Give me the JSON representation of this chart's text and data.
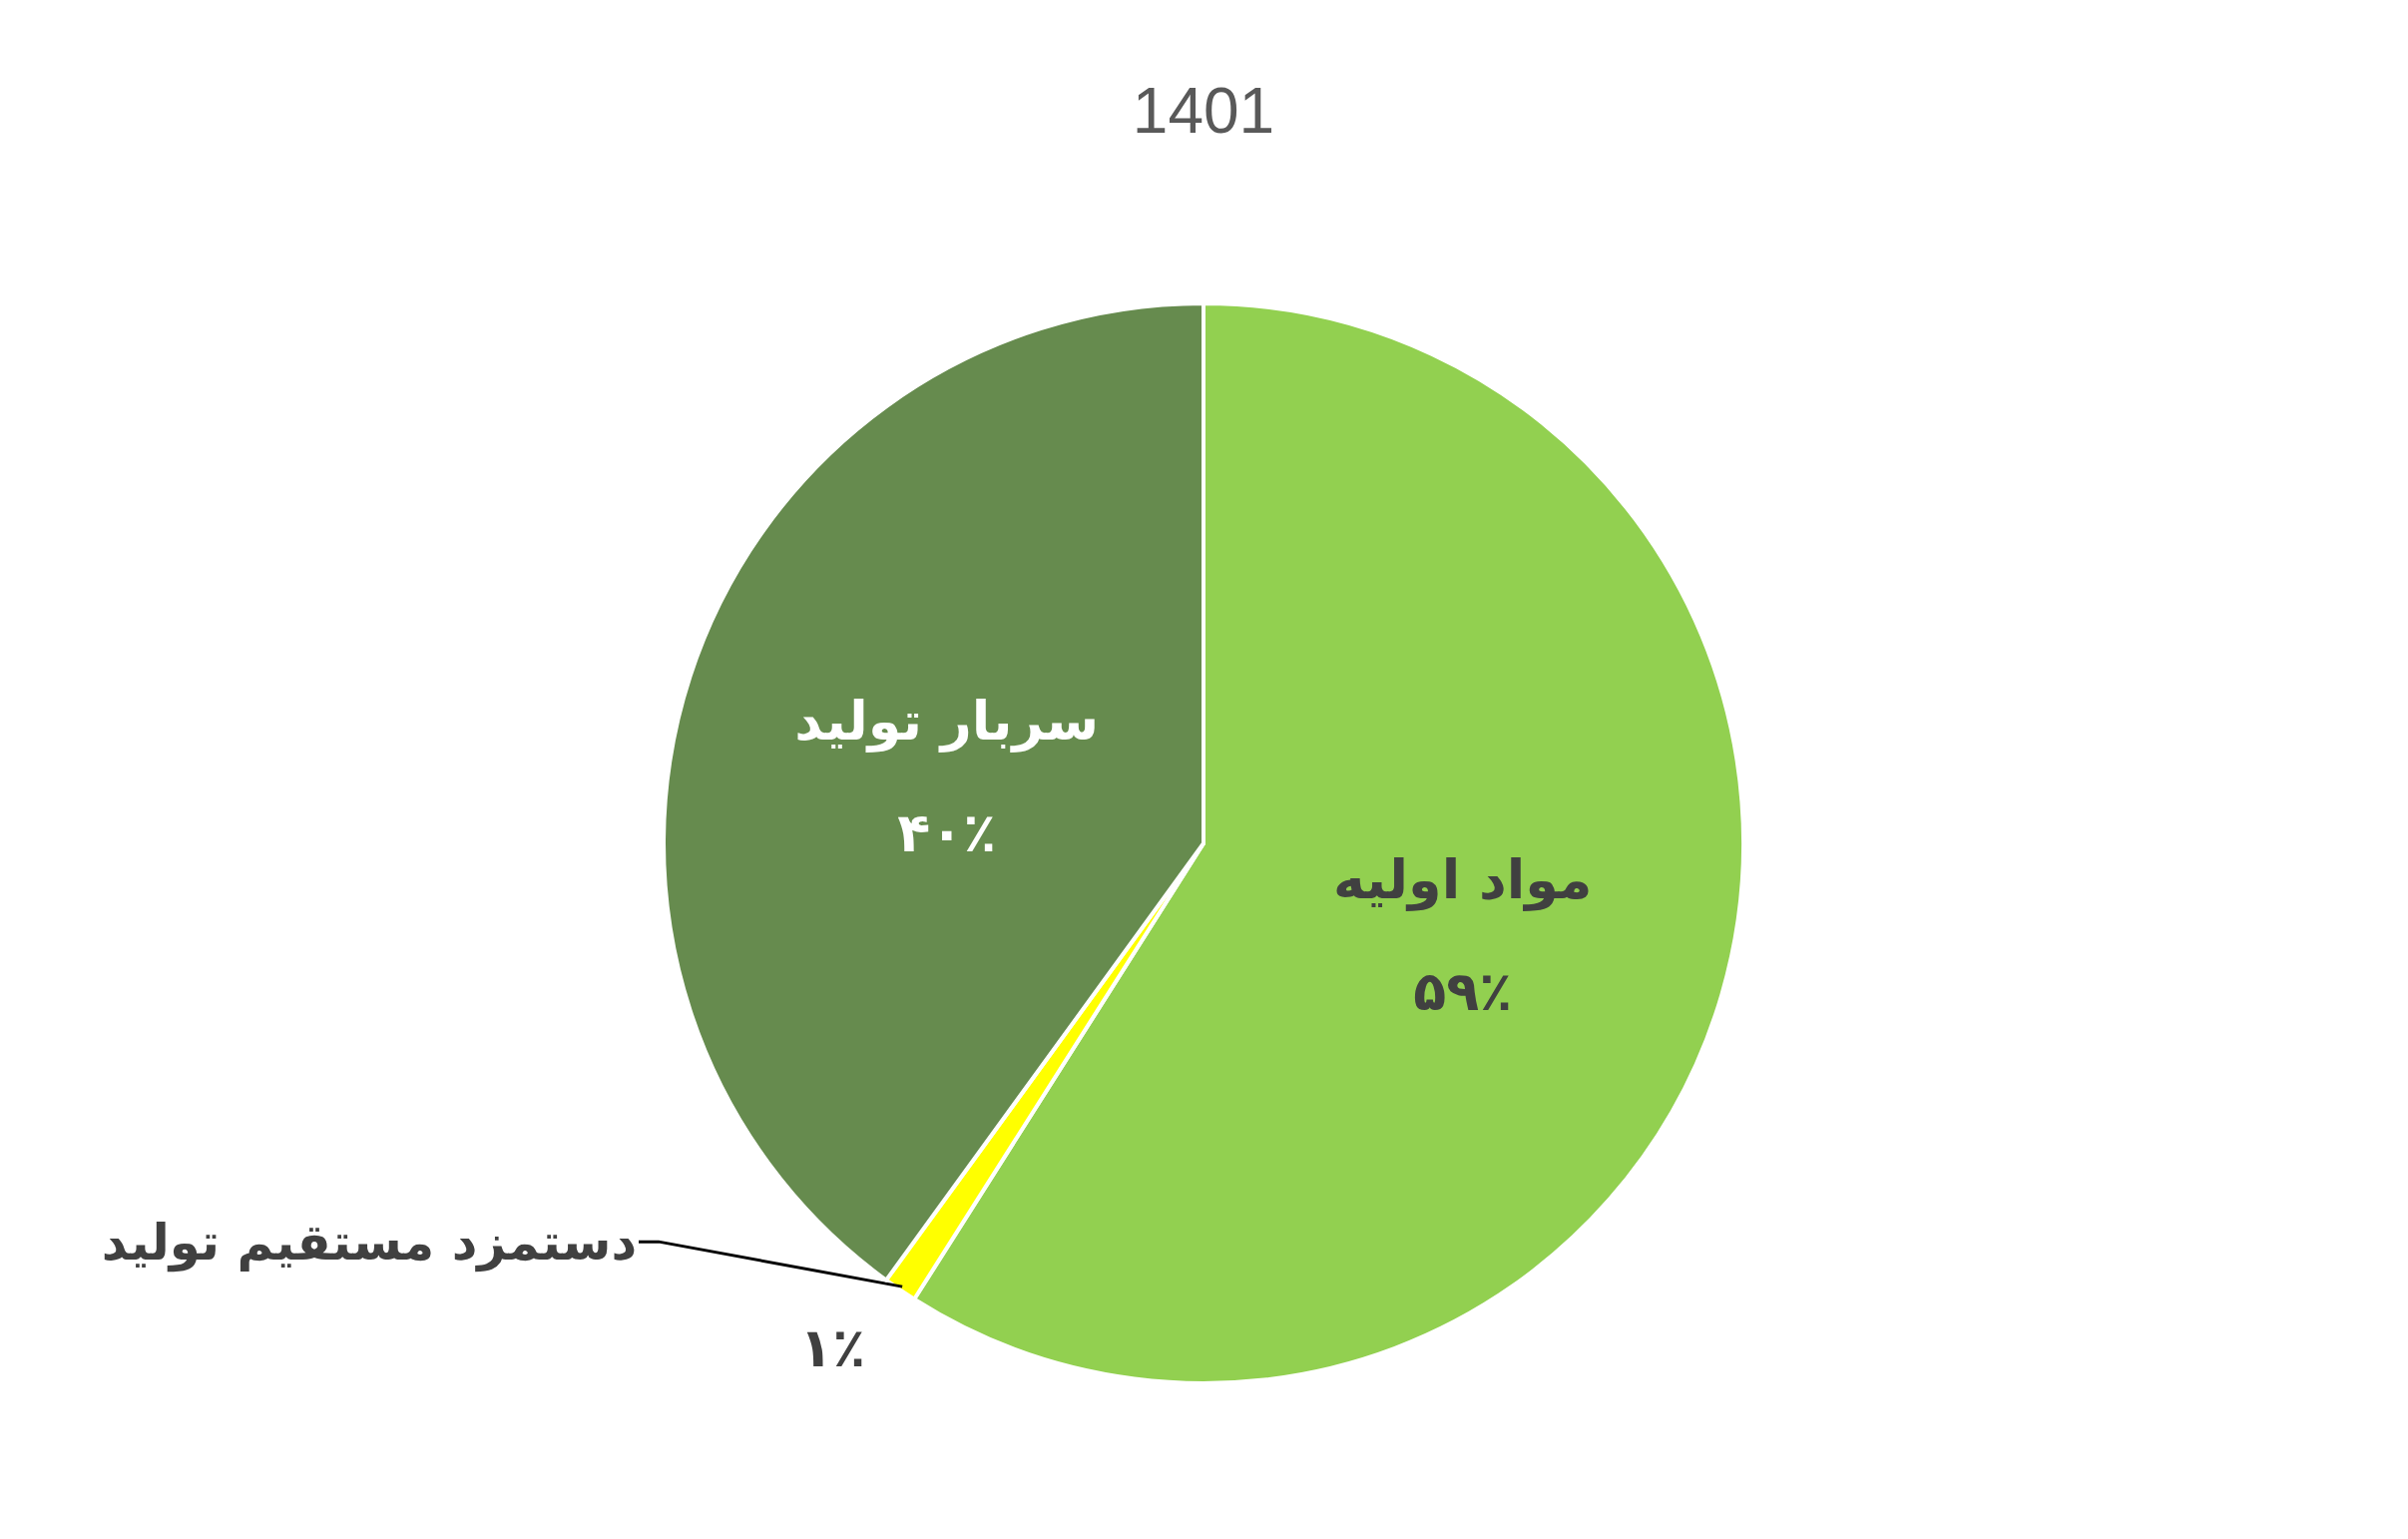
{
  "chart_data": {
    "type": "pie",
    "title": "1401",
    "categories": [
      "مواد اولیه",
      "دستمزد مستقیم تولید",
      "سربار تولید"
    ],
    "values": [
      59,
      1,
      40
    ],
    "colors": [
      "#92d050",
      "#ffff00",
      "#668b4e"
    ],
    "value_labels": [
      "۵۹٪",
      "۱٪",
      "۴۰٪"
    ]
  }
}
